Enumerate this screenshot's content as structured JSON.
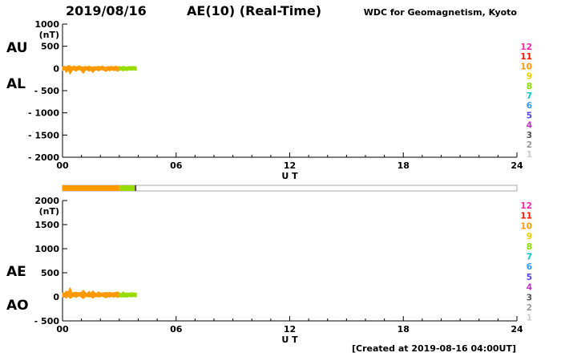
{
  "header": {
    "date": "2019/08/16",
    "title": "AE(10) (Real-Time)",
    "source": "WDC for Geomagnetism, Kyoto"
  },
  "footer": {
    "created": "[Created at 2019-08-16 04:00UT]"
  },
  "legend": {
    "station_counts": [
      {
        "n": "12",
        "color": "#ff22aa"
      },
      {
        "n": "11",
        "color": "#ff1100"
      },
      {
        "n": "10",
        "color": "#ff9900"
      },
      {
        "n": "9",
        "color": "#eecc00"
      },
      {
        "n": "8",
        "color": "#88dd00"
      },
      {
        "n": "7",
        "color": "#00cccc"
      },
      {
        "n": "6",
        "color": "#3399ff"
      },
      {
        "n": "5",
        "color": "#5544ee"
      },
      {
        "n": "4",
        "color": "#bb33cc"
      },
      {
        "n": "3",
        "color": "#555555"
      },
      {
        "n": "2",
        "color": "#999999"
      },
      {
        "n": "1",
        "color": "#cccccc"
      }
    ]
  },
  "availability_bar": {
    "xlim": [
      0,
      24
    ],
    "segments": [
      {
        "from": 0,
        "to": 3.0,
        "color": "#ff9900"
      },
      {
        "from": 3.0,
        "to": 3.82,
        "color": "#99dd00"
      },
      {
        "from": 3.82,
        "to": 3.9,
        "color": "#5a3a3a"
      }
    ]
  },
  "chart_data": [
    {
      "type": "line",
      "name": "AU / AL panel",
      "ylabel": "(nT)",
      "ylim": [
        -2000,
        1000
      ],
      "yticks": [
        1000,
        500,
        0,
        -500,
        -1000,
        -1500,
        -2000
      ],
      "xlim": [
        0,
        24
      ],
      "xticks": [
        0,
        6,
        12,
        18,
        24
      ],
      "xtick_labels": [
        "00",
        "06",
        "12",
        "18",
        "24"
      ],
      "xlabel": "U T",
      "left_labels": [
        "AU",
        "AL"
      ],
      "x": [
        0,
        0.1,
        0.2,
        0.3,
        0.4,
        0.5,
        0.6,
        0.7,
        0.8,
        0.9,
        1,
        1.1,
        1.2,
        1.3,
        1.4,
        1.5,
        1.6,
        1.7,
        1.8,
        1.9,
        2,
        2.1,
        2.2,
        2.3,
        2.4,
        2.5,
        2.6,
        2.7,
        2.8,
        2.9,
        3,
        3.1,
        3.2,
        3.3,
        3.4,
        3.5,
        3.6,
        3.7,
        3.8,
        3.9
      ],
      "series": [
        {
          "name": "AU",
          "values": [
            35,
            52,
            30,
            64,
            60,
            30,
            58,
            36,
            47,
            62,
            38,
            30,
            49,
            33,
            55,
            39,
            30,
            45,
            34,
            50,
            38,
            56,
            33,
            27,
            44,
            38,
            49,
            33,
            55,
            38,
            44,
            33,
            49,
            38,
            33,
            44,
            38,
            48,
            43,
            38
          ]
        },
        {
          "name": "AL",
          "values": [
            -45,
            -28,
            -90,
            -38,
            -130,
            -52,
            -33,
            -62,
            -40,
            -27,
            -57,
            -110,
            -45,
            -32,
            -62,
            -38,
            -95,
            -44,
            -33,
            -56,
            -38,
            -27,
            -50,
            -68,
            -38,
            -56,
            -33,
            -50,
            -38,
            -62,
            -45,
            -33,
            -56,
            -38,
            -50,
            -33,
            -45,
            -38,
            -33,
            -44
          ]
        }
      ],
      "color_segments": [
        {
          "from": 0,
          "to": 3.0,
          "color": "#ff9900"
        },
        {
          "from": 3.0,
          "to": 3.9,
          "color": "#99dd00"
        }
      ]
    },
    {
      "type": "line",
      "name": "AE / AO panel",
      "ylabel": "(nT)",
      "ylim": [
        -500,
        2000
      ],
      "yticks": [
        2000,
        1500,
        1000,
        500,
        0,
        -500
      ],
      "xlim": [
        0,
        24
      ],
      "xticks": [
        0,
        6,
        12,
        18,
        24
      ],
      "xtick_labels": [
        "00",
        "06",
        "12",
        "18",
        "24"
      ],
      "xlabel": "U T",
      "left_labels": [
        "AE",
        "AO"
      ],
      "x": [
        0,
        0.1,
        0.2,
        0.3,
        0.4,
        0.5,
        0.6,
        0.7,
        0.8,
        0.9,
        1,
        1.1,
        1.2,
        1.3,
        1.4,
        1.5,
        1.6,
        1.7,
        1.8,
        1.9,
        2,
        2.1,
        2.2,
        2.3,
        2.4,
        2.5,
        2.6,
        2.7,
        2.8,
        2.9,
        3,
        3.1,
        3.2,
        3.3,
        3.4,
        3.5,
        3.6,
        3.7,
        3.8,
        3.9
      ],
      "series": [
        {
          "name": "AE",
          "values": [
            80,
            80,
            120,
            102,
            190,
            82,
            91,
            98,
            87,
            89,
            95,
            140,
            94,
            65,
            117,
            77,
            125,
            89,
            67,
            106,
            76,
            83,
            83,
            95,
            82,
            94,
            82,
            83,
            93,
            100,
            89,
            66,
            105,
            76,
            83,
            77,
            83,
            86,
            76,
            82
          ]
        },
        {
          "name": "AO",
          "values": [
            -5,
            12,
            -30,
            13,
            -35,
            -11,
            12,
            -13,
            4,
            18,
            -10,
            -40,
            2,
            1,
            -4,
            1,
            -32,
            1,
            1,
            -3,
            0,
            15,
            -9,
            -21,
            3,
            -9,
            8,
            -9,
            9,
            -12,
            -1,
            0,
            -4,
            0,
            -9,
            6,
            -4,
            5,
            5,
            -3
          ]
        }
      ],
      "color_segments": [
        {
          "from": 0,
          "to": 3.0,
          "color": "#ff9900"
        },
        {
          "from": 3.0,
          "to": 3.9,
          "color": "#99dd00"
        }
      ]
    }
  ]
}
